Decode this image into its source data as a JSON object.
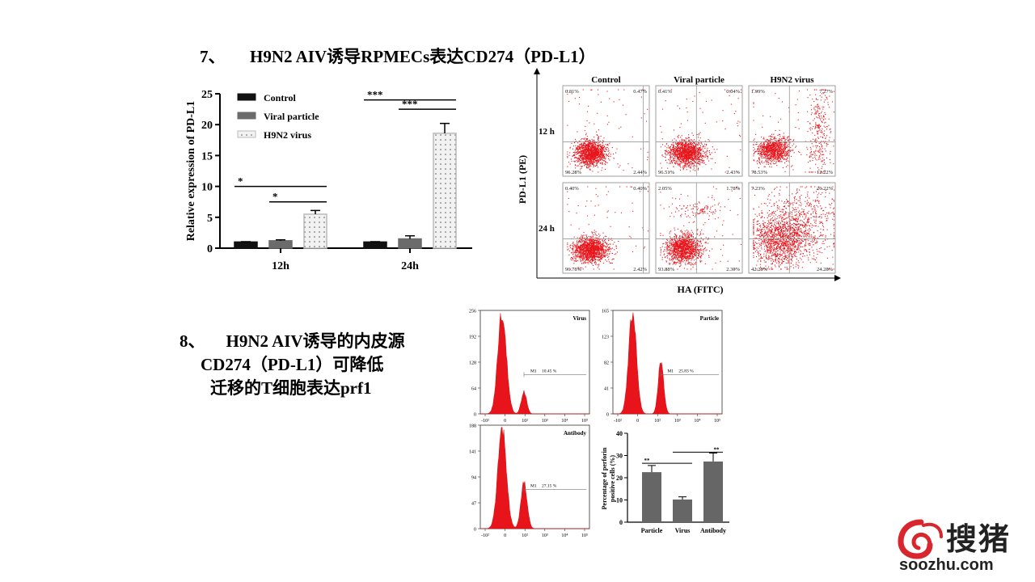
{
  "section7": {
    "number": "7、",
    "title": "H9N2 AIV诱导RPMECs表达CD274（PD-L1）"
  },
  "section8": {
    "number": "8、",
    "lines": [
      "H9N2 AIV诱导的内皮源",
      "CD274（PD-L1）可降低",
      "迁移的T细胞表达prf1"
    ]
  },
  "chart_data": [
    {
      "type": "bar",
      "ylabel": "Relative expression of PD-L1",
      "ylim": [
        0,
        25
      ],
      "yticks": [
        "0",
        "5",
        "10",
        "15",
        "20",
        "25"
      ],
      "categories": [
        "12h",
        "24h"
      ],
      "series": [
        {
          "name": "Control",
          "values": [
            1.0,
            1.0
          ],
          "errors": [
            0.05,
            0.05
          ],
          "color": "#111111"
        },
        {
          "name": "Viral particle",
          "values": [
            1.2,
            1.5
          ],
          "errors": [
            0.15,
            0.5
          ],
          "color": "#6b6b6b"
        },
        {
          "name": "H9N2 virus",
          "values": [
            5.5,
            18.6
          ],
          "errors": [
            0.6,
            1.6
          ],
          "color": "#e6e6e6"
        }
      ],
      "significance": [
        {
          "label": "*",
          "category": "12h",
          "from": "Control",
          "to": "H9N2 virus",
          "y": 10
        },
        {
          "label": "*",
          "category": "12h",
          "from": "Viral particle",
          "to": "H9N2 virus",
          "y": 7.5
        },
        {
          "label": "***",
          "category": "24h",
          "from": "Control",
          "to": "H9N2 virus",
          "y": 24
        },
        {
          "label": "***",
          "category": "24h",
          "from": "Viral particle",
          "to": "H9N2 virus",
          "y": 22.5
        }
      ],
      "legend_position": "top-left"
    },
    {
      "type": "scatter",
      "subtype": "flow-cytometry-quadrant-grid",
      "columns": [
        "Control",
        "Viral particle",
        "H9N2 virus"
      ],
      "rows": [
        "12 h",
        "24 h"
      ],
      "ylabel": "PD-L1 (PE)",
      "xlabel": "HA  (FITC)",
      "quadrants": [
        [
          {
            "ul": "0.81%",
            "ur": "0.47%",
            "ll": "96.28%",
            "lr": "2.44%"
          },
          {
            "ul": "0.41%",
            "ur": "0.04%",
            "ll": "96.51%",
            "lr": "2.43%"
          },
          {
            "ul": "1.99%",
            "ur": "7.27%",
            "ll": "78.53%",
            "lr": "12.22%"
          }
        ],
        [
          {
            "ul": "0.40%",
            "ur": "0.40%",
            "ll": "96.78%",
            "lr": "2.42%"
          },
          {
            "ul": "2.05%",
            "ur": "1.78%",
            "ll": "93.88%",
            "lr": "2.30%"
          },
          {
            "ul": "7.23%",
            "ur": "26.22%",
            "ll": "42.28%",
            "lr": "24.28%"
          }
        ]
      ]
    },
    {
      "type": "area",
      "subtype": "histogram",
      "panels": [
        {
          "name": "Virus",
          "yticks": [
            "0",
            "64",
            "128",
            "192",
            "256"
          ],
          "ymax": 256,
          "gate_label": "M1",
          "gate_value": "10.45 %"
        },
        {
          "name": "Particle",
          "yticks": [
            "0",
            "41",
            "82",
            "123",
            "165"
          ],
          "ymax": 165,
          "gate_label": "M1",
          "gate_value": "25.83 %"
        },
        {
          "name": "Antibody",
          "yticks": [
            "0",
            "47",
            "94",
            "141",
            "188"
          ],
          "ymax": 188,
          "gate_label": "M1",
          "gate_value": "27.15 %"
        }
      ],
      "xticks": [
        "-10²",
        "0",
        "10²",
        "10³",
        "10⁴",
        "10⁵"
      ]
    },
    {
      "type": "bar",
      "ylabel": "Percentage of perforin positive cells (%)",
      "ylim": [
        0,
        40
      ],
      "yticks": [
        "0",
        "10",
        "20",
        "30",
        "40"
      ],
      "categories": [
        "Particle",
        "Virus",
        "Antibody"
      ],
      "values": [
        22.5,
        10.2,
        27.3
      ],
      "errors": [
        3.0,
        1.2,
        3.8
      ],
      "color": "#666666",
      "significance": [
        {
          "label": "**",
          "from": "Particle",
          "to": "Virus",
          "y": 26.5
        },
        {
          "label": "**",
          "from": "Virus",
          "to": "Antibody",
          "y": 31.5
        }
      ]
    }
  ],
  "watermark": {
    "cn": "搜猪",
    "url": "soozhu.com"
  }
}
